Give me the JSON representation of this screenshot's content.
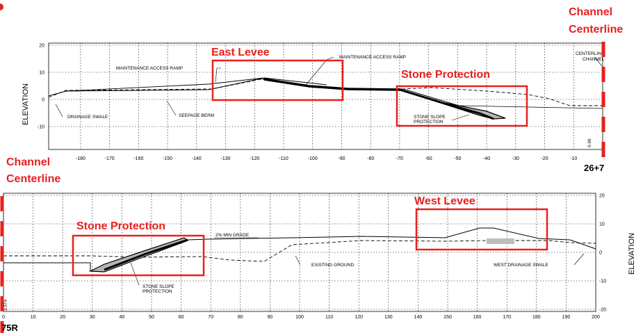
{
  "labels": {
    "channel_centerline_top": [
      "Channel",
      "Centerline"
    ],
    "channel_centerline_left": [
      "Channel",
      "Centerline"
    ],
    "east_levee": "East Levee",
    "stone_protection_top": "Stone Protection",
    "stone_protection_bottom": "Stone Protection",
    "west_levee": "West Levee",
    "station_top": "26+7",
    "station_bottom": "75R"
  },
  "top_section": {
    "y_axis_title": "ELEVATION",
    "x_ticks": [
      -180,
      -170,
      -160,
      -150,
      -140,
      -130,
      -120,
      -110,
      -100,
      -90,
      -80,
      -70,
      -60,
      -50,
      -40,
      -30,
      -20,
      -10
    ],
    "y_ticks": [
      20,
      10,
      0,
      -10
    ],
    "small_value": "0.99",
    "annotations": {
      "maint_ramp_left": "MAINTENANCE ACCESS RAMP",
      "maint_ramp_right": "MAINTENANCE ACCESS RAMP",
      "centerline_channel": [
        "CENTERLINE",
        "CHANNEL"
      ],
      "drainage_swale": "DRAINAGE SWALE",
      "seepage_berm": "SEEPAGE BERM",
      "stone_slope": [
        "STONE SLOPE",
        "PROTECTION"
      ]
    }
  },
  "bottom_section": {
    "y_axis_title": "ELEVATION",
    "x_ticks": [
      0,
      10,
      20,
      30,
      40,
      50,
      60,
      70,
      80,
      90,
      100,
      110,
      120,
      130,
      140,
      150,
      160,
      170,
      180,
      190,
      200
    ],
    "y_ticks": [
      20,
      10,
      0,
      -10,
      -20
    ],
    "small_value": "3.574",
    "annotations": {
      "min_grade": "2% MIN GRADE",
      "existing_ground": "EXISTING GROUND",
      "west_drainage_swale": "WEST DRAINAGE SWALE",
      "stone_slope": [
        "STONE SLOPE",
        "PROTECTION"
      ]
    }
  },
  "colors": {
    "highlight": "#e8201e",
    "ink": "#000000"
  }
}
